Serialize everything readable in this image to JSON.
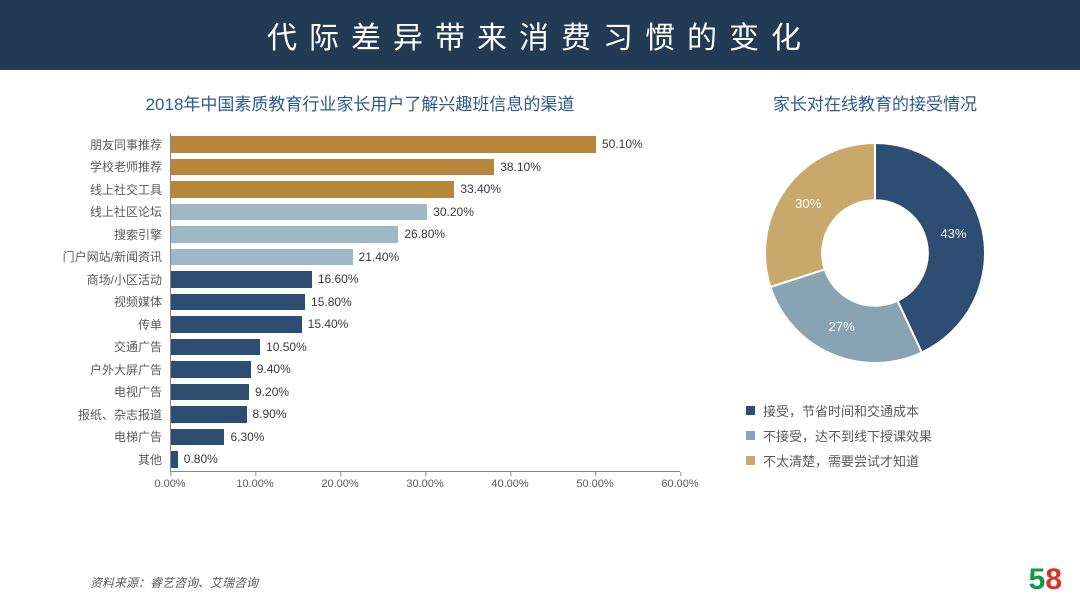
{
  "header": {
    "title": "代际差异带来消费习惯的变化"
  },
  "bar_chart": {
    "type": "bar-horizontal",
    "title": "2018年中国素质教育行业家长用户了解兴趣班信息的渠道",
    "xmax": 60.0,
    "xtick_step": 10.0,
    "xtick_suffix": ".00%",
    "axis_color": "#888888",
    "label_fontsize": 12,
    "value_fontsize": 12,
    "bars": [
      {
        "label": "朋友同事推荐",
        "value": 50.1,
        "display": "50.10%",
        "color": "#b8863b"
      },
      {
        "label": "学校老师推荐",
        "value": 38.1,
        "display": "38.10%",
        "color": "#b8863b"
      },
      {
        "label": "线上社交工具",
        "value": 33.4,
        "display": "33.40%",
        "color": "#b8863b"
      },
      {
        "label": "线上社区论坛",
        "value": 30.2,
        "display": "30.20%",
        "color": "#9fb8c6"
      },
      {
        "label": "搜索引擎",
        "value": 26.8,
        "display": "26.80%",
        "color": "#9fb8c6"
      },
      {
        "label": "门户网站/新闻资讯",
        "value": 21.4,
        "display": "21.40%",
        "color": "#9fb8c6"
      },
      {
        "label": "商场/小区活动",
        "value": 16.6,
        "display": "16.60%",
        "color": "#2d4e72"
      },
      {
        "label": "视频媒体",
        "value": 15.8,
        "display": "15.80%",
        "color": "#2d4e72"
      },
      {
        "label": "传单",
        "value": 15.4,
        "display": "15.40%",
        "color": "#2d4e72"
      },
      {
        "label": "交通广告",
        "value": 10.5,
        "display": "10.50%",
        "color": "#2d4e72"
      },
      {
        "label": "户外大屏广告",
        "value": 9.4,
        "display": "9.40%",
        "color": "#2d4e72"
      },
      {
        "label": "电视广告",
        "value": 9.2,
        "display": "9.20%",
        "color": "#2d4e72"
      },
      {
        "label": "报纸、杂志报道",
        "value": 8.9,
        "display": "8.90%",
        "color": "#2d4e72"
      },
      {
        "label": "电梯广告",
        "value": 6.3,
        "display": "6.30%",
        "color": "#2d4e72"
      },
      {
        "label": "其他",
        "value": 0.8,
        "display": "0.80%",
        "color": "#2d4e72"
      }
    ]
  },
  "donut_chart": {
    "type": "pie-donut",
    "title": "家长对在线教育的接受情况",
    "inner_radius_pct": 48,
    "background_color": "#ffffff",
    "slices": [
      {
        "label": "接受，节省时间和交通成本",
        "value": 43,
        "display": "43%",
        "color": "#2d4e72"
      },
      {
        "label": "不接受，达不到线下授课效果",
        "value": 27,
        "display": "27%",
        "color": "#88a3b2"
      },
      {
        "label": "不太清楚，需要尝试才知道",
        "value": 30,
        "display": "30%",
        "color": "#c8a86b"
      }
    ],
    "legend_prefix": "■ "
  },
  "source": "资料来源：睿艺咨询、艾瑞咨询",
  "logo": {
    "d1": "5",
    "d2": "8"
  }
}
